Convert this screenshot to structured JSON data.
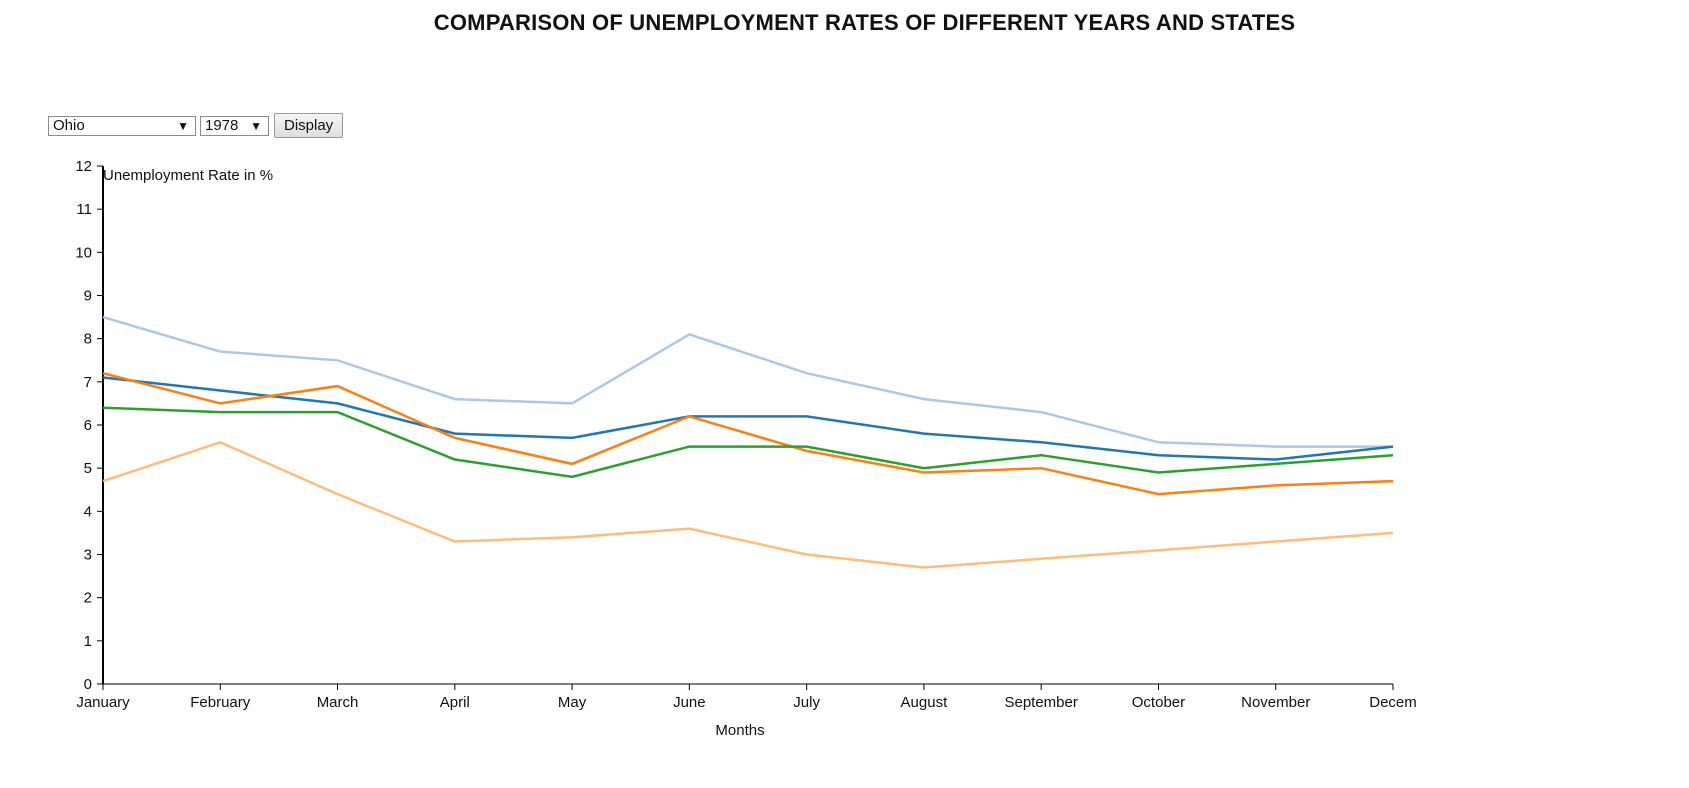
{
  "page": {
    "title": "COMPARISON OF UNEMPLOYMENT RATES OF DIFFERENT YEARS AND STATES"
  },
  "controls": {
    "state_select_value": "Ohio",
    "year_select_value": "1978",
    "display_button_label": "Display",
    "dropdown_arrow": "▼"
  },
  "chart_data": {
    "type": "line",
    "title": "COMPARISON OF UNEMPLOYMENT RATES OF DIFFERENT YEARS AND STATES",
    "xlabel": "Months",
    "ylabel": "Unemployment Rate in %",
    "ylim": [
      0,
      12
    ],
    "yticks": [
      0,
      1,
      2,
      3,
      4,
      5,
      6,
      7,
      8,
      9,
      10,
      11,
      12
    ],
    "categories": [
      "January",
      "February",
      "March",
      "April",
      "May",
      "June",
      "July",
      "August",
      "September",
      "October",
      "November",
      "Decem"
    ],
    "grid": false,
    "legend": "none",
    "series": [
      {
        "color": "#aec7e8",
        "values": [
          8.5,
          7.7,
          7.5,
          6.6,
          6.5,
          8.1,
          7.2,
          6.6,
          6.3,
          5.6,
          5.5,
          5.5
        ]
      },
      {
        "color": "#1f77b4",
        "values": [
          7.1,
          6.8,
          6.5,
          5.8,
          5.7,
          6.2,
          6.2,
          5.8,
          5.6,
          5.3,
          5.2,
          5.5
        ]
      },
      {
        "color": "#ff7f0e",
        "values": [
          7.2,
          6.5,
          6.9,
          5.7,
          5.1,
          6.2,
          5.4,
          4.9,
          5.0,
          4.4,
          4.6,
          4.7
        ]
      },
      {
        "color": "#2ca02c",
        "values": [
          6.4,
          6.3,
          6.3,
          5.2,
          4.8,
          5.5,
          5.5,
          5.0,
          5.3,
          4.9,
          5.1,
          5.3
        ]
      },
      {
        "color": "#ffbb78",
        "values": [
          4.7,
          5.6,
          4.4,
          3.3,
          3.4,
          3.6,
          3.0,
          2.7,
          2.9,
          3.1,
          3.3,
          3.5
        ]
      }
    ]
  }
}
